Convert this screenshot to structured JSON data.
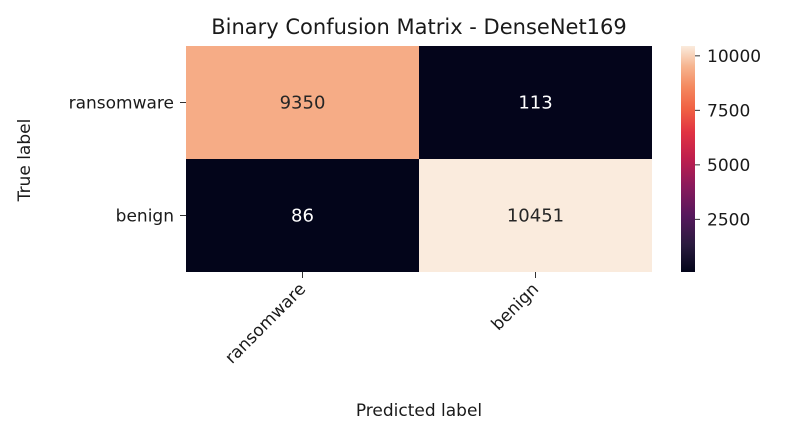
{
  "chart_data": {
    "type": "heatmap",
    "title": "Binary Confusion Matrix - DenseNet169",
    "xlabel": "Predicted label",
    "ylabel": "True label",
    "rows": [
      "ransomware",
      "benign"
    ],
    "columns": [
      "ransomware",
      "benign"
    ],
    "values": [
      [
        9350,
        113
      ],
      [
        86,
        10451
      ]
    ],
    "colorbar": {
      "ticks": [
        2500,
        5000,
        7500,
        10000
      ],
      "tick_labels": [
        "2500",
        "5000",
        "7500",
        "10000"
      ],
      "range": [
        86,
        10451
      ],
      "colormap": "rocket"
    },
    "grid": false,
    "legend": "colorbar-right"
  }
}
